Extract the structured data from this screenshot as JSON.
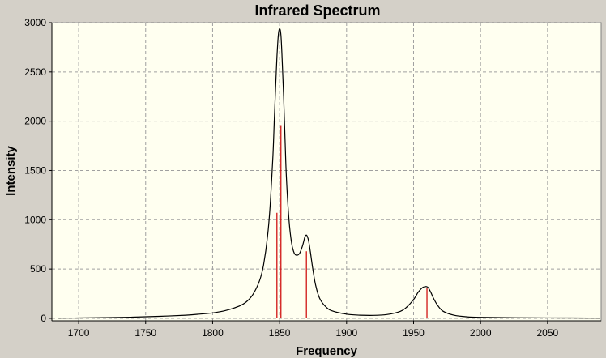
{
  "chart_data": {
    "type": "line",
    "title": "Infrared Spectrum",
    "xlabel": "Frequency",
    "ylabel": "Intensity",
    "xlim": [
      1680,
      2090
    ],
    "ylim": [
      -25,
      3000
    ],
    "x_ticks": [
      1700,
      1750,
      1800,
      1850,
      1900,
      1950,
      2000,
      2050
    ],
    "y_ticks": [
      0,
      500,
      1000,
      1500,
      2000,
      2500,
      3000
    ],
    "grid": true,
    "colors": {
      "background": "#d4d0c8",
      "plot_area": "#fffff0",
      "spectrum": "#000000",
      "sticks": "#cc0000"
    },
    "series": [
      {
        "x": [
          1685,
          1700,
          1720,
          1740,
          1760,
          1780,
          1790,
          1800,
          1810,
          1820,
          1825,
          1830,
          1835,
          1838,
          1841,
          1843,
          1845,
          1846,
          1847,
          1848,
          1849,
          1850,
          1851,
          1852,
          1853,
          1854,
          1855,
          1857,
          1859,
          1861,
          1863,
          1865,
          1867,
          1868,
          1869,
          1870,
          1871,
          1872,
          1873,
          1875,
          1877,
          1880,
          1885,
          1890,
          1900,
          1910,
          1920,
          1930,
          1940,
          1945,
          1950,
          1953,
          1955,
          1957,
          1959,
          1960,
          1961,
          1963,
          1965,
          1968,
          1972,
          1980,
          1990,
          2000,
          2020,
          2040,
          2060,
          2080,
          2089
        ],
        "y": [
          2,
          4,
          7,
          12,
          20,
          32,
          42,
          55,
          80,
          125,
          165,
          240,
          380,
          540,
          830,
          1150,
          1650,
          2000,
          2350,
          2650,
          2870,
          2940,
          2870,
          2600,
          2250,
          1850,
          1450,
          1000,
          760,
          660,
          640,
          660,
          730,
          780,
          830,
          845,
          820,
          760,
          670,
          480,
          330,
          200,
          110,
          72,
          42,
          32,
          30,
          38,
          70,
          115,
          190,
          255,
          290,
          315,
          322,
          320,
          310,
          260,
          200,
          130,
          72,
          32,
          15,
          10,
          7,
          5,
          4,
          3,
          3
        ]
      }
    ],
    "sticks": [
      {
        "x": 1848,
        "y": 1070
      },
      {
        "x": 1851,
        "y": 1960
      },
      {
        "x": 1870,
        "y": 680
      },
      {
        "x": 1960,
        "y": 310
      }
    ]
  }
}
